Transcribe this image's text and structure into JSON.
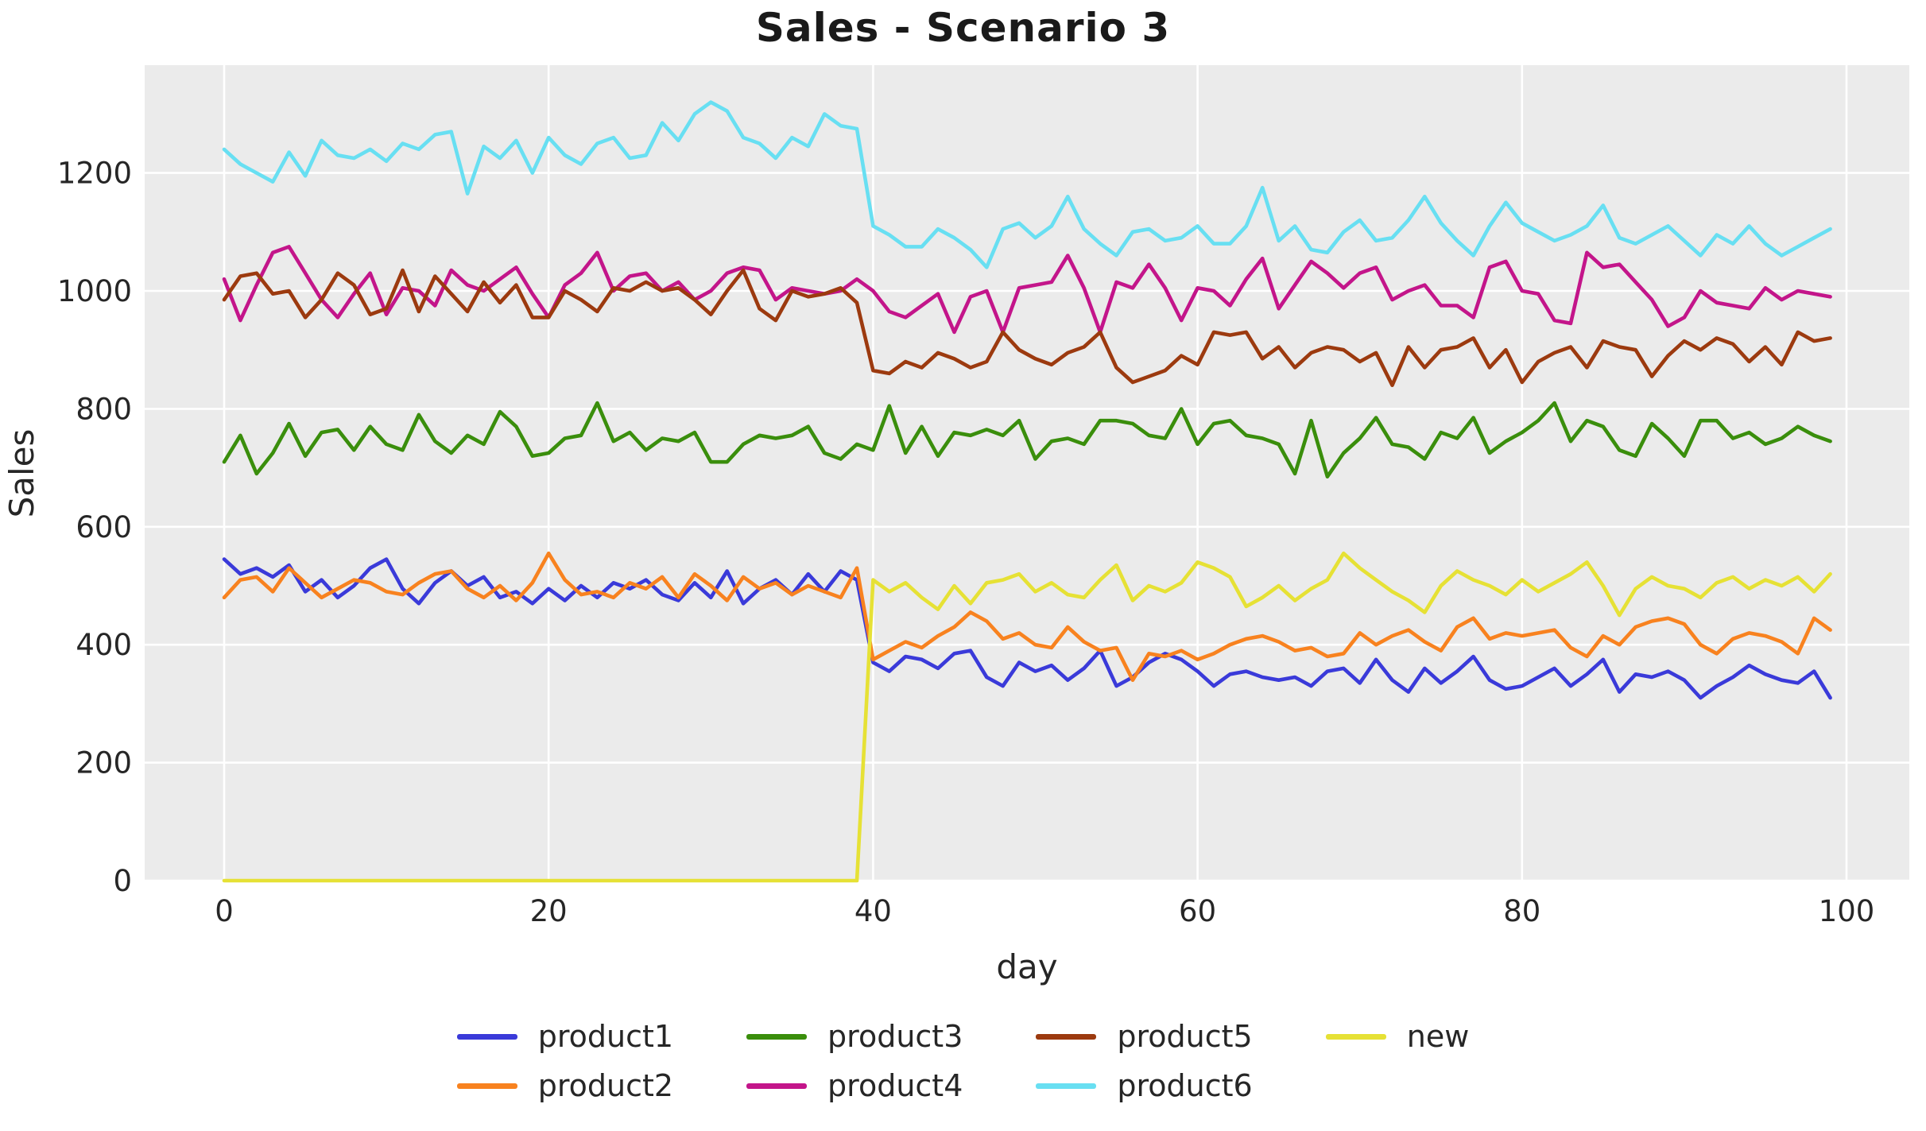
{
  "title": "Sales - Scenario 3",
  "axes": {
    "xlabel": "day",
    "ylabel": "Sales",
    "x_ticks": [
      0,
      20,
      40,
      60,
      80,
      100
    ],
    "y_ticks": [
      0,
      200,
      400,
      600,
      800,
      1000,
      1200
    ],
    "background_color": "#ebebeb",
    "grid_color": "#ffffff",
    "text_color": "#262626"
  },
  "legend_layout": {
    "columns": [
      [
        "product1",
        "product2"
      ],
      [
        "product3",
        "product4"
      ],
      [
        "product5",
        "product6"
      ],
      [
        "new"
      ]
    ]
  },
  "chart_data": {
    "type": "line",
    "title": "Sales - Scenario 3",
    "xlabel": "day",
    "ylabel": "Sales",
    "x_start": 0,
    "x_step": 1,
    "n_points": 100,
    "xlim": [
      -5,
      104
    ],
    "ylim": [
      0,
      1383
    ],
    "grid": true,
    "legend_position": "below-chart, 2 rows, column-major",
    "series": [
      {
        "name": "product1",
        "color": "#3a3ad9",
        "values": [
          545,
          520,
          530,
          515,
          535,
          490,
          510,
          480,
          500,
          530,
          545,
          495,
          470,
          505,
          525,
          500,
          515,
          480,
          490,
          470,
          495,
          475,
          500,
          480,
          505,
          495,
          510,
          485,
          475,
          505,
          480,
          525,
          470,
          495,
          510,
          485,
          520,
          490,
          525,
          510,
          370,
          355,
          380,
          375,
          360,
          385,
          390,
          345,
          330,
          370,
          355,
          365,
          340,
          360,
          390,
          330,
          345,
          370,
          385,
          375,
          355,
          330,
          350,
          355,
          345,
          340,
          345,
          330,
          355,
          360,
          335,
          375,
          340,
          320,
          360,
          335,
          355,
          380,
          340,
          325,
          330,
          345,
          360,
          330,
          350,
          375,
          320,
          350,
          345,
          355,
          340,
          310,
          330,
          345,
          365,
          350,
          340,
          335,
          355,
          310
        ]
      },
      {
        "name": "product2",
        "color": "#f8821f",
        "values": [
          480,
          510,
          515,
          490,
          530,
          505,
          480,
          495,
          510,
          505,
          490,
          485,
          505,
          520,
          525,
          495,
          480,
          500,
          475,
          505,
          555,
          510,
          485,
          490,
          480,
          505,
          495,
          515,
          480,
          520,
          500,
          475,
          515,
          495,
          505,
          485,
          500,
          490,
          480,
          530,
          375,
          390,
          405,
          395,
          415,
          430,
          455,
          440,
          410,
          420,
          400,
          395,
          430,
          405,
          390,
          395,
          340,
          385,
          380,
          390,
          375,
          385,
          400,
          410,
          415,
          405,
          390,
          395,
          380,
          385,
          420,
          400,
          415,
          425,
          405,
          390,
          430,
          445,
          410,
          420,
          415,
          420,
          425,
          395,
          380,
          415,
          400,
          430,
          440,
          445,
          435,
          400,
          385,
          410,
          420,
          415,
          405,
          385,
          445,
          425
        ]
      },
      {
        "name": "product3",
        "color": "#3a8e0c",
        "values": [
          710,
          755,
          690,
          725,
          775,
          720,
          760,
          765,
          730,
          770,
          740,
          730,
          790,
          745,
          725,
          755,
          740,
          795,
          770,
          720,
          725,
          750,
          755,
          810,
          745,
          760,
          730,
          750,
          745,
          760,
          710,
          710,
          740,
          755,
          750,
          755,
          770,
          725,
          715,
          740,
          730,
          805,
          725,
          770,
          720,
          760,
          755,
          765,
          755,
          780,
          715,
          745,
          750,
          740,
          780,
          780,
          775,
          755,
          750,
          800,
          740,
          775,
          780,
          755,
          750,
          740,
          690,
          780,
          685,
          725,
          750,
          785,
          740,
          735,
          715,
          760,
          750,
          785,
          725,
          745,
          760,
          780,
          810,
          745,
          780,
          770,
          730,
          720,
          775,
          750,
          720,
          780,
          780,
          750,
          760,
          740,
          750,
          770,
          755,
          745
        ]
      },
      {
        "name": "product4",
        "color": "#c3158a",
        "values": [
          1020,
          950,
          1010,
          1065,
          1075,
          1030,
          985,
          955,
          995,
          1030,
          960,
          1005,
          1000,
          975,
          1035,
          1010,
          1000,
          1020,
          1040,
          995,
          955,
          1010,
          1030,
          1065,
          1000,
          1025,
          1030,
          1000,
          1015,
          985,
          1000,
          1030,
          1040,
          1035,
          985,
          1005,
          1000,
          995,
          1000,
          1020,
          1000,
          965,
          955,
          975,
          995,
          930,
          990,
          1000,
          930,
          1005,
          1010,
          1015,
          1060,
          1005,
          930,
          1015,
          1005,
          1045,
          1005,
          950,
          1005,
          1000,
          975,
          1020,
          1055,
          970,
          1010,
          1050,
          1030,
          1005,
          1030,
          1040,
          985,
          1000,
          1010,
          975,
          975,
          955,
          1040,
          1050,
          1000,
          995,
          950,
          945,
          1065,
          1040,
          1045,
          1015,
          985,
          940,
          955,
          1000,
          980,
          975,
          970,
          1005,
          985,
          1000,
          995,
          990
        ]
      },
      {
        "name": "product5",
        "color": "#9c3a0f",
        "values": [
          985,
          1025,
          1030,
          995,
          1000,
          955,
          985,
          1030,
          1010,
          960,
          970,
          1035,
          965,
          1025,
          995,
          965,
          1015,
          980,
          1010,
          955,
          955,
          1000,
          985,
          965,
          1005,
          1000,
          1015,
          1000,
          1005,
          985,
          960,
          1000,
          1035,
          970,
          950,
          1000,
          990,
          995,
          1005,
          980,
          865,
          860,
          880,
          870,
          895,
          885,
          870,
          880,
          930,
          900,
          885,
          875,
          895,
          905,
          930,
          870,
          845,
          855,
          865,
          890,
          875,
          930,
          925,
          930,
          885,
          905,
          870,
          895,
          905,
          900,
          880,
          895,
          840,
          905,
          870,
          900,
          905,
          920,
          870,
          900,
          845,
          880,
          895,
          905,
          870,
          915,
          905,
          900,
          855,
          890,
          915,
          900,
          920,
          910,
          880,
          905,
          875,
          930,
          915,
          920
        ]
      },
      {
        "name": "product6",
        "color": "#68dff2",
        "values": [
          1240,
          1215,
          1200,
          1185,
          1235,
          1195,
          1255,
          1230,
          1225,
          1240,
          1220,
          1250,
          1240,
          1265,
          1270,
          1165,
          1245,
          1225,
          1255,
          1200,
          1260,
          1230,
          1215,
          1250,
          1260,
          1225,
          1230,
          1285,
          1255,
          1300,
          1320,
          1305,
          1260,
          1250,
          1225,
          1260,
          1245,
          1300,
          1280,
          1275,
          1110,
          1095,
          1075,
          1075,
          1105,
          1090,
          1070,
          1040,
          1105,
          1115,
          1090,
          1110,
          1160,
          1105,
          1080,
          1060,
          1100,
          1105,
          1085,
          1090,
          1110,
          1080,
          1080,
          1110,
          1175,
          1085,
          1110,
          1070,
          1065,
          1100,
          1120,
          1085,
          1090,
          1120,
          1160,
          1115,
          1085,
          1060,
          1110,
          1150,
          1115,
          1100,
          1085,
          1095,
          1110,
          1145,
          1090,
          1080,
          1095,
          1110,
          1085,
          1060,
          1095,
          1080,
          1110,
          1080,
          1060,
          1075,
          1090,
          1105
        ]
      },
      {
        "name": "new",
        "color": "#e6e135",
        "values": [
          0,
          0,
          0,
          0,
          0,
          0,
          0,
          0,
          0,
          0,
          0,
          0,
          0,
          0,
          0,
          0,
          0,
          0,
          0,
          0,
          0,
          0,
          0,
          0,
          0,
          0,
          0,
          0,
          0,
          0,
          0,
          0,
          0,
          0,
          0,
          0,
          0,
          0,
          0,
          0,
          510,
          490,
          505,
          480,
          460,
          500,
          470,
          505,
          510,
          520,
          490,
          505,
          485,
          480,
          510,
          535,
          475,
          500,
          490,
          505,
          540,
          530,
          515,
          465,
          480,
          500,
          475,
          495,
          510,
          555,
          530,
          510,
          490,
          475,
          455,
          500,
          525,
          510,
          500,
          485,
          510,
          490,
          505,
          520,
          540,
          500,
          450,
          495,
          515,
          500,
          495,
          480,
          505,
          515,
          495,
          510,
          500,
          515,
          490,
          520
        ]
      }
    ]
  }
}
